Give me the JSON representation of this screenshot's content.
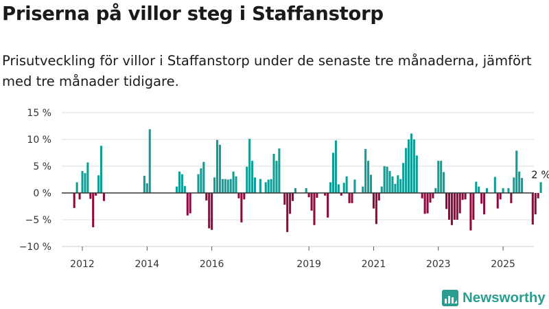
{
  "title": "Priserna på villor steg i Staffanstorp",
  "subtitle": "Prisutveckling för villor i Staffanstorp under de senaste tre månaderna, jämfört med tre månader tidigare.",
  "brand": {
    "name": "Newsworthy",
    "color": "#2a9d8f"
  },
  "colors": {
    "positive": "#0f9d96",
    "negative": "#8e0a3e",
    "grid": "#dddddd",
    "zero_line": "#333333"
  },
  "chart_data": {
    "type": "bar",
    "xlabel": "",
    "ylabel": "",
    "ylim": [
      -10,
      15
    ],
    "yticks": [
      -10,
      -5,
      0,
      5,
      10,
      15
    ],
    "ytick_labels": [
      "−10 %",
      "−5 %",
      "0 %",
      "5 %",
      "10 %",
      "15 %"
    ],
    "xticks": [
      2012,
      2014,
      2016,
      2019,
      2021,
      2023,
      2025
    ],
    "grid": true,
    "annotation": {
      "text": "2 %",
      "value": 2
    },
    "start_month": "2011-10",
    "values": [
      -2.8,
      2,
      -1.2,
      4.1,
      3.7,
      5.7,
      -1.1,
      -6.4,
      -0.5,
      3.3,
      8.8,
      -1.5,
      0,
      0,
      0,
      0,
      0,
      0,
      0,
      0,
      0,
      0,
      0,
      0,
      0,
      0,
      3.2,
      1.8,
      11.9,
      0,
      0,
      0,
      0,
      0,
      0,
      0,
      0,
      0,
      1.2,
      4,
      3.5,
      1.3,
      -4.2,
      -3.8,
      0,
      0,
      3.5,
      4.6,
      5.8,
      -1.4,
      -6.6,
      -6.9,
      2.9,
      9.9,
      9,
      2.6,
      2.6,
      2.5,
      2.6,
      4,
      3.1,
      -1,
      -5.5,
      -1.2,
      4.9,
      10.1,
      6,
      2.9,
      0,
      2.6,
      0,
      2,
      2.5,
      2.6,
      7.3,
      6,
      8.3,
      0,
      -2.2,
      -7.3,
      -3.9,
      -1.5,
      0.9,
      0,
      0,
      0,
      0.9,
      -0.8,
      -3.3,
      -6,
      -0.9,
      0,
      0,
      -0.5,
      -4.6,
      2,
      7.5,
      9.8,
      1.6,
      -0.5,
      1.9,
      3.1,
      -1.9,
      -1.9,
      2.5,
      0,
      0,
      1.2,
      8.2,
      6,
      3.4,
      -2.9,
      -5.8,
      -1.4,
      1.2,
      5,
      4.9,
      4.1,
      3.1,
      1.7,
      3.3,
      2.6,
      5.6,
      8.4,
      10,
      11.1,
      10,
      7,
      0,
      -1,
      -3.9,
      -3.8,
      -1.8,
      -1,
      0.9,
      6,
      6,
      3.9,
      -3,
      -5,
      -6,
      -5,
      -5,
      -3.8,
      -1.3,
      -1.2,
      0,
      -7,
      -5,
      2.1,
      1.2,
      -2,
      -4,
      0.9,
      0,
      0,
      3,
      -2.9,
      -1.2,
      0.9,
      0,
      0.9,
      -1.9,
      2.9,
      7.9,
      4,
      2.8,
      0,
      0,
      0,
      -5.9,
      -4,
      -1,
      2
    ]
  }
}
